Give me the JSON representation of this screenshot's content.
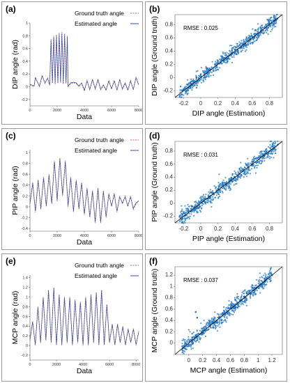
{
  "colors": {
    "ground_truth": "#d9534f",
    "estimated": "#2f4fa8",
    "scatter": "#1f77c4",
    "diag": "#000000",
    "frame": "#9a9a9a"
  },
  "chart_data": [
    {
      "id": "a",
      "type": "line",
      "title": "(a)",
      "xlabel": "Data",
      "ylabel": "DIP angle (rad)",
      "xlim": [
        0,
        8000
      ],
      "ylim": [
        -0.3,
        1.0
      ],
      "xticks": [
        0,
        2000,
        4000,
        6000,
        8000
      ],
      "xtick_labels": [
        "0",
        "2000",
        "4000",
        "6000",
        "8000"
      ],
      "yticks": [
        -0.2,
        0,
        0.2,
        0.4,
        0.6,
        0.8,
        1
      ],
      "ytick_labels": [
        "-0.2",
        "0",
        "0.2",
        "0.4",
        "0.6",
        "0.8",
        "1"
      ],
      "legend_position": "top-right",
      "series": [
        {
          "name": "Ground truth angle",
          "style": "dashed",
          "color_key": "ground_truth",
          "x": [
            0,
            300,
            400,
            700,
            900,
            1100,
            1300,
            1450,
            1550,
            1650,
            1750,
            1850,
            1950,
            2050,
            2150,
            2250,
            2350,
            2450,
            2550,
            2650,
            2750,
            2800,
            3000,
            3200,
            3400,
            3600,
            3800,
            4000,
            4200,
            4400,
            4600,
            4800,
            5000,
            5200,
            5400,
            5600,
            5800,
            6000,
            6200,
            6400,
            6600,
            6800,
            7000,
            7200,
            7400,
            7600,
            7800,
            8000
          ],
          "y": [
            0.03,
            0.0,
            0.15,
            0.0,
            0.18,
            0.05,
            0.14,
            0.02,
            0.75,
            0.05,
            0.8,
            0.04,
            0.82,
            0.05,
            0.85,
            0.06,
            0.86,
            0.04,
            0.84,
            0.05,
            0.8,
            0.0,
            0.05,
            0.06,
            0.05,
            0.0,
            0.05,
            -0.07,
            0.1,
            -0.05,
            0.12,
            -0.04,
            0.12,
            -0.05,
            0.02,
            -0.06,
            0.1,
            -0.04,
            0.1,
            -0.06,
            0.12,
            -0.04,
            0.05,
            -0.06,
            0.1,
            -0.05,
            0.15,
            0.02
          ]
        },
        {
          "name": "Estimated angle",
          "style": "solid",
          "color_key": "estimated",
          "x": [
            0,
            300,
            400,
            700,
            900,
            1100,
            1300,
            1450,
            1550,
            1650,
            1750,
            1850,
            1950,
            2050,
            2150,
            2250,
            2350,
            2450,
            2550,
            2650,
            2750,
            2800,
            3000,
            3200,
            3400,
            3600,
            3800,
            4000,
            4200,
            4400,
            4600,
            4800,
            5000,
            5200,
            5400,
            5600,
            5800,
            6000,
            6200,
            6400,
            6600,
            6800,
            7000,
            7200,
            7400,
            7600,
            7800,
            8000
          ],
          "y": [
            0.04,
            0.01,
            0.14,
            0.01,
            0.17,
            0.06,
            0.13,
            0.03,
            0.73,
            0.06,
            0.78,
            0.05,
            0.8,
            0.06,
            0.83,
            0.07,
            0.84,
            0.05,
            0.82,
            0.06,
            0.78,
            0.01,
            0.06,
            0.07,
            0.06,
            0.01,
            0.06,
            -0.05,
            0.09,
            -0.04,
            0.11,
            -0.03,
            0.11,
            -0.04,
            0.03,
            -0.05,
            0.09,
            -0.03,
            0.09,
            -0.05,
            0.11,
            -0.03,
            0.06,
            -0.05,
            0.09,
            -0.04,
            0.14,
            0.03
          ]
        }
      ]
    },
    {
      "id": "b",
      "type": "scatter",
      "title": "(b)",
      "xlabel": "DIP angle (Estimation)",
      "ylabel": "DIP angle (Ground truth)",
      "xlim": [
        -0.3,
        0.95
      ],
      "ylim": [
        -0.3,
        0.95
      ],
      "xticks": [
        -0.2,
        0,
        0.2,
        0.4,
        0.6,
        0.8
      ],
      "xtick_labels": [
        "-0.2",
        "0",
        "0.2",
        "0.4",
        "0.6",
        "0.8"
      ],
      "yticks": [
        -0.2,
        0,
        0.2,
        0.4,
        0.6,
        0.8
      ],
      "ytick_labels": [
        "-0.2",
        "0",
        "0.2",
        "0.4",
        "0.6",
        "0.8"
      ],
      "annotation": "RMSE : 0.025",
      "cluster": {
        "x_range": [
          -0.25,
          0.9
        ],
        "spread": 0.06,
        "points": [
          [
            -0.2,
            -0.18
          ],
          [
            -0.15,
            -0.1
          ],
          [
            -0.1,
            -0.12
          ],
          [
            -0.05,
            0.0
          ],
          [
            0.0,
            0.05
          ],
          [
            0.05,
            0.0
          ],
          [
            0.1,
            0.12
          ],
          [
            0.15,
            0.1
          ],
          [
            0.2,
            0.25
          ],
          [
            0.3,
            0.28
          ],
          [
            0.4,
            0.42
          ],
          [
            0.5,
            0.48
          ],
          [
            0.6,
            0.62
          ],
          [
            0.7,
            0.68
          ],
          [
            0.8,
            0.82
          ],
          [
            0.85,
            0.86
          ]
        ]
      }
    },
    {
      "id": "c",
      "type": "line",
      "title": "(c)",
      "xlabel": "Data",
      "ylabel": "PIP angle (rad)",
      "xlim": [
        0,
        8000
      ],
      "ylim": [
        -0.45,
        1.05
      ],
      "xticks": [
        0,
        2000,
        4000,
        6000,
        8000
      ],
      "xtick_labels": [
        "0",
        "2000",
        "4000",
        "6000",
        "8000"
      ],
      "yticks": [
        -0.4,
        -0.2,
        0,
        0.2,
        0.4,
        0.6,
        0.8,
        1
      ],
      "ytick_labels": [
        "-0.4",
        "-0.2",
        "0",
        "0.2",
        "0.4",
        "0.6",
        "0.8",
        "1"
      ],
      "legend_position": "top-right",
      "series": [
        {
          "name": "Ground truth angle",
          "style": "dashed",
          "color_key": "ground_truth",
          "x": [
            0,
            200,
            400,
            600,
            800,
            1000,
            1200,
            1400,
            1600,
            1800,
            2000,
            2200,
            2400,
            2600,
            2800,
            3000,
            3200,
            3400,
            3600,
            3800,
            4000,
            4200,
            4400,
            4600,
            4800,
            5000,
            5200,
            5400,
            5600,
            5800,
            6000,
            6200,
            6400,
            6600,
            6800,
            7000,
            7200,
            7400,
            7600,
            7800,
            8000
          ],
          "y": [
            0.05,
            0.45,
            -0.1,
            0.5,
            -0.05,
            0.55,
            0.0,
            0.6,
            0.05,
            0.85,
            0.1,
            0.9,
            0.2,
            0.85,
            0.0,
            0.55,
            -0.1,
            0.5,
            -0.05,
            0.45,
            -0.15,
            0.35,
            -0.2,
            0.3,
            -0.3,
            0.35,
            -0.3,
            0.3,
            -0.2,
            0.25,
            0.0,
            0.25,
            -0.1,
            0.2,
            0.05,
            0.2,
            0.0,
            0.2,
            -0.05,
            0.05,
            0.1
          ]
        },
        {
          "name": "Estimated angle",
          "style": "solid",
          "color_key": "estimated",
          "x": [
            0,
            200,
            400,
            600,
            800,
            1000,
            1200,
            1400,
            1600,
            1800,
            2000,
            2200,
            2400,
            2600,
            2800,
            3000,
            3200,
            3400,
            3600,
            3800,
            4000,
            4200,
            4400,
            4600,
            4800,
            5000,
            5200,
            5400,
            5600,
            5800,
            6000,
            6200,
            6400,
            6600,
            6800,
            7000,
            7200,
            7400,
            7600,
            7800,
            8000
          ],
          "y": [
            0.06,
            0.43,
            -0.08,
            0.48,
            -0.03,
            0.53,
            0.02,
            0.58,
            0.07,
            0.83,
            0.12,
            0.88,
            0.22,
            0.83,
            0.02,
            0.53,
            -0.08,
            0.48,
            -0.03,
            0.43,
            -0.13,
            0.33,
            -0.18,
            0.28,
            -0.28,
            0.33,
            -0.28,
            0.28,
            -0.18,
            0.23,
            0.02,
            0.23,
            -0.08,
            0.18,
            0.07,
            0.18,
            0.02,
            0.18,
            -0.03,
            0.07,
            0.11
          ]
        }
      ]
    },
    {
      "id": "d",
      "type": "scatter",
      "title": "(d)",
      "xlabel": "PIP angle (Estimation)",
      "ylabel": "PIP angle (Ground truth)",
      "xlim": [
        -0.3,
        0.95
      ],
      "ylim": [
        -0.3,
        0.95
      ],
      "xticks": [
        -0.2,
        0,
        0.2,
        0.4,
        0.6,
        0.8
      ],
      "xtick_labels": [
        "-0.2",
        "0",
        "0.2",
        "0.4",
        "0.6",
        "0.8"
      ],
      "yticks": [
        -0.2,
        0,
        0.2,
        0.4,
        0.6,
        0.8
      ],
      "ytick_labels": [
        "-0.2",
        "0",
        "0.2",
        "0.4",
        "0.6",
        "0.8"
      ],
      "annotation": "RMSE : 0.031",
      "cluster": {
        "x_range": [
          -0.25,
          0.9
        ],
        "spread": 0.07,
        "points": [
          [
            -0.2,
            -0.15
          ],
          [
            -0.15,
            -0.12
          ],
          [
            -0.1,
            -0.05
          ],
          [
            -0.05,
            -0.08
          ],
          [
            0.0,
            0.02
          ],
          [
            0.1,
            0.08
          ],
          [
            0.2,
            0.22
          ],
          [
            0.3,
            0.28
          ],
          [
            0.4,
            0.4
          ],
          [
            0.5,
            0.52
          ],
          [
            0.6,
            0.58
          ],
          [
            0.7,
            0.72
          ],
          [
            0.8,
            0.8
          ],
          [
            0.85,
            0.84
          ]
        ]
      }
    },
    {
      "id": "e",
      "type": "line",
      "title": "(e)",
      "xlabel": "Data",
      "ylabel": "MCP angle (rad)",
      "xlim": [
        0,
        8200
      ],
      "ylim": [
        -0.3,
        1.45
      ],
      "xticks": [
        0,
        2000,
        4000,
        6000,
        8000
      ],
      "xtick_labels": [
        "0",
        "2000",
        "4000",
        "6000",
        "8000"
      ],
      "yticks": [
        -0.2,
        0,
        0.2,
        0.4,
        0.6,
        0.8,
        1,
        1.2,
        1.4
      ],
      "ytick_labels": [
        "-0.2",
        "0",
        "0.2",
        "0.4",
        "0.6",
        "0.8",
        "1",
        "1.2",
        "1.4"
      ],
      "legend_position": "top-right",
      "series": [
        {
          "name": "Ground truth angle",
          "style": "dashed",
          "color_key": "ground_truth",
          "x": [
            0,
            200,
            400,
            600,
            800,
            1000,
            1200,
            1400,
            1600,
            1800,
            2000,
            2200,
            2400,
            2600,
            2800,
            3000,
            3200,
            3400,
            3600,
            3800,
            4000,
            4200,
            4400,
            4600,
            4800,
            5000,
            5200,
            5400,
            5600,
            5800,
            6000,
            6200,
            6400,
            6600,
            6800,
            7000,
            7200,
            7400,
            7600,
            7800,
            8000,
            8200
          ],
          "y": [
            0.1,
            0.5,
            0.0,
            0.8,
            0.05,
            1.0,
            0.1,
            1.15,
            0.05,
            1.2,
            0.0,
            1.05,
            0.0,
            1.0,
            0.05,
            1.0,
            0.0,
            0.95,
            0.05,
            0.9,
            0.0,
            1.0,
            0.0,
            1.05,
            0.05,
            1.1,
            0.0,
            1.15,
            0.0,
            0.85,
            0.05,
            0.45,
            0.0,
            0.45,
            0.05,
            0.4,
            0.0,
            0.35,
            0.05,
            0.35,
            0.0,
            0.3
          ]
        },
        {
          "name": "Estimated angle",
          "style": "solid",
          "color_key": "estimated",
          "x": [
            0,
            200,
            400,
            600,
            800,
            1000,
            1200,
            1400,
            1600,
            1800,
            2000,
            2200,
            2400,
            2600,
            2800,
            3000,
            3200,
            3400,
            3600,
            3800,
            4000,
            4200,
            4400,
            4600,
            4800,
            5000,
            5200,
            5400,
            5600,
            5800,
            6000,
            6200,
            6400,
            6600,
            6800,
            7000,
            7200,
            7400,
            7600,
            7800,
            8000,
            8200
          ],
          "y": [
            0.12,
            0.48,
            0.02,
            0.78,
            0.07,
            0.98,
            0.12,
            1.13,
            0.07,
            1.18,
            0.02,
            1.03,
            0.02,
            0.98,
            0.07,
            0.98,
            0.02,
            0.93,
            0.07,
            0.88,
            0.02,
            0.98,
            0.02,
            1.03,
            0.07,
            1.08,
            0.02,
            1.13,
            0.02,
            0.83,
            0.07,
            0.43,
            0.02,
            0.43,
            0.07,
            0.38,
            0.02,
            0.33,
            0.07,
            0.33,
            0.02,
            0.28
          ]
        }
      ]
    },
    {
      "id": "f",
      "type": "scatter",
      "title": "(f)",
      "xlabel": "MCP angle (Estimation)",
      "ylabel": "MCP angle (Ground truth)",
      "xlim": [
        -0.2,
        1.35
      ],
      "ylim": [
        -0.2,
        1.35
      ],
      "xticks": [
        0,
        0.2,
        0.4,
        0.6,
        0.8,
        1,
        1.2
      ],
      "xtick_labels": [
        "0",
        "0.2",
        "0.4",
        "0.6",
        "0.8",
        "1",
        "1.2"
      ],
      "yticks": [
        0,
        0.2,
        0.4,
        0.6,
        0.8,
        1,
        1.2
      ],
      "ytick_labels": [
        "0",
        "0.2",
        "0.4",
        "0.6",
        "0.8",
        "1",
        "1.2"
      ],
      "annotation": "RMSE : 0.037",
      "cluster": {
        "x_range": [
          -0.1,
          1.2
        ],
        "spread": 0.08,
        "points": [
          [
            -0.05,
            0.0
          ],
          [
            0.0,
            -0.05
          ],
          [
            0.05,
            0.1
          ],
          [
            0.1,
            0.55
          ],
          [
            0.12,
            0.45
          ],
          [
            0.2,
            0.18
          ],
          [
            0.3,
            0.32
          ],
          [
            0.4,
            0.38
          ],
          [
            0.5,
            0.52
          ],
          [
            0.6,
            0.62
          ],
          [
            0.7,
            0.68
          ],
          [
            0.8,
            0.82
          ],
          [
            0.9,
            0.88
          ],
          [
            1.0,
            1.0
          ],
          [
            1.1,
            1.12
          ],
          [
            1.2,
            1.2
          ]
        ]
      }
    }
  ]
}
